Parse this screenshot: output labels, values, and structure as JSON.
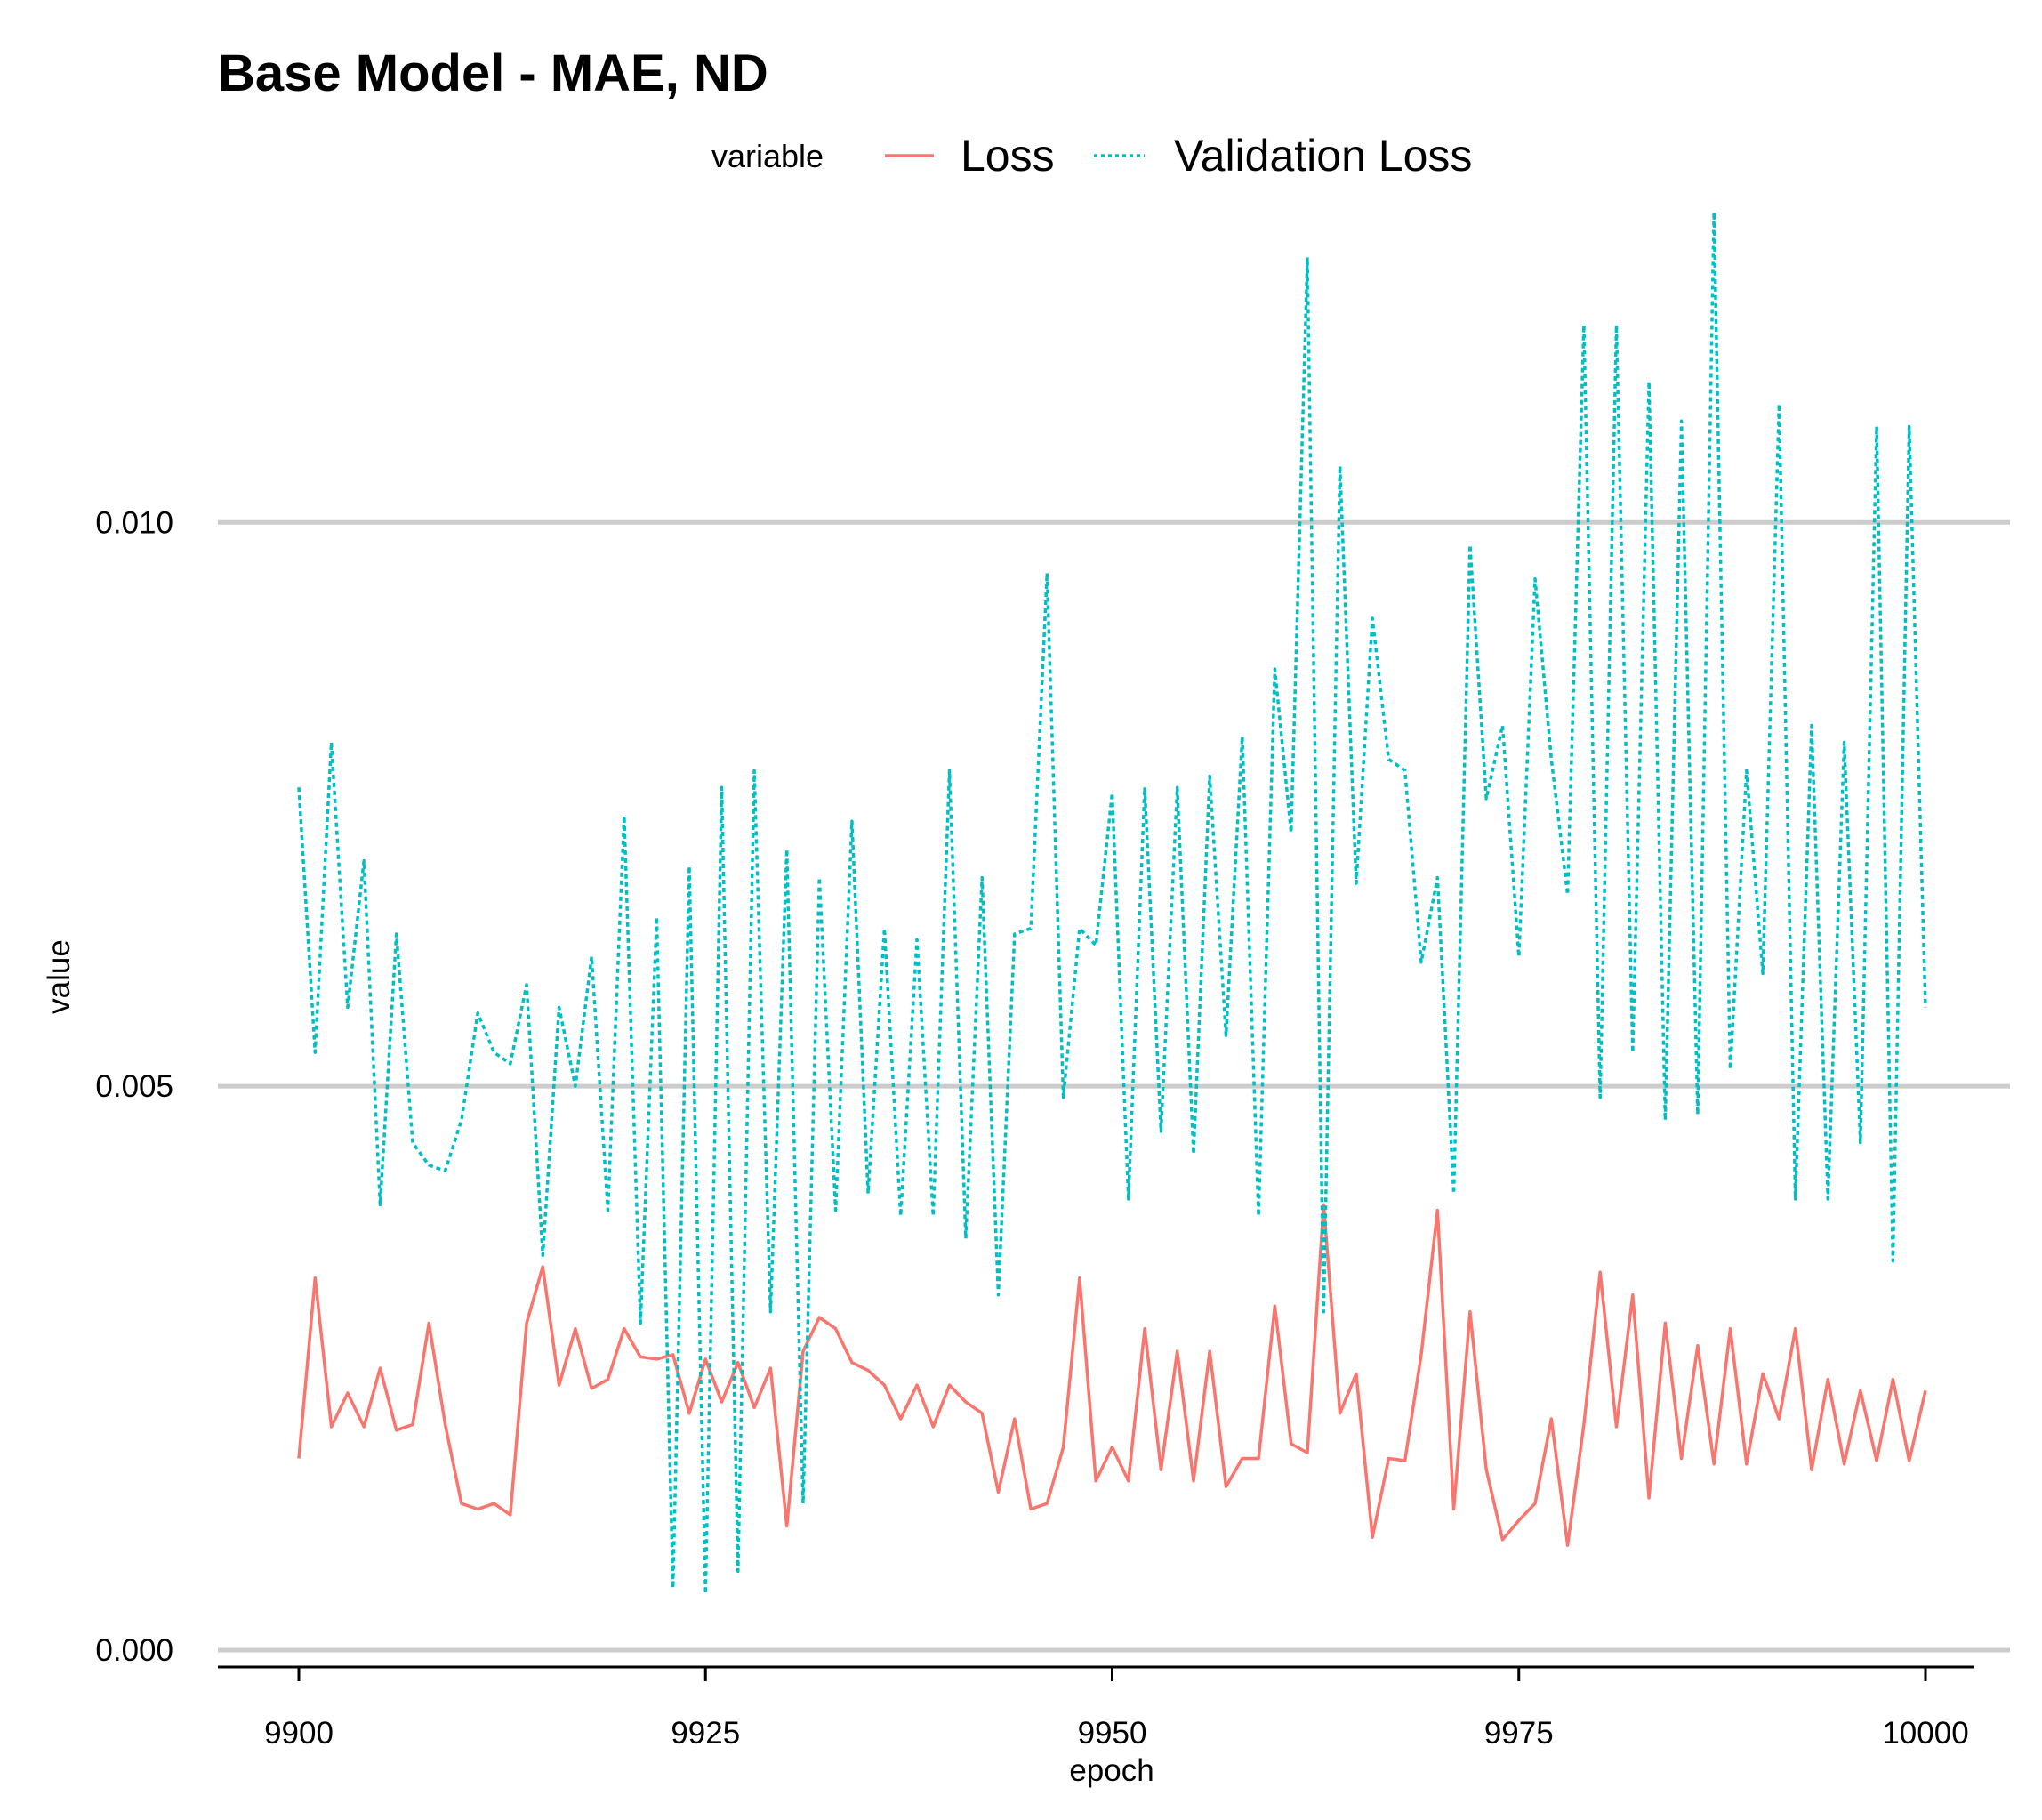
{
  "chart_data": {
    "type": "line",
    "title": "Base Model - MAE, ND",
    "xlabel": "epoch",
    "ylabel": "value",
    "xlim": [
      9900,
      10000
    ],
    "ylim": [
      0,
      0.0127
    ],
    "xticks": [
      9900,
      9925,
      9950,
      9975,
      10000
    ],
    "xtick_labels": [
      "9900",
      "9925",
      "9950",
      "9975",
      "10000"
    ],
    "yticks": [
      0,
      0.005,
      0.01
    ],
    "ytick_labels": [
      "0.000",
      "0.005",
      "0.010"
    ],
    "grid": "horizontal-major",
    "legend": {
      "title": "variable",
      "position": "top"
    },
    "x": [
      9900,
      9901,
      9902,
      9903,
      9904,
      9905,
      9906,
      9907,
      9908,
      9909,
      9910,
      9911,
      9912,
      9913,
      9914,
      9915,
      9916,
      9917,
      9918,
      9919,
      9920,
      9921,
      9922,
      9923,
      9924,
      9925,
      9926,
      9927,
      9928,
      9929,
      9930,
      9931,
      9932,
      9933,
      9934,
      9935,
      9936,
      9937,
      9938,
      9939,
      9940,
      9941,
      9942,
      9943,
      9944,
      9945,
      9946,
      9947,
      9948,
      9949,
      9950,
      9951,
      9952,
      9953,
      9954,
      9955,
      9956,
      9957,
      9958,
      9959,
      9960,
      9961,
      9962,
      9963,
      9964,
      9965,
      9966,
      9967,
      9968,
      9969,
      9970,
      9971,
      9972,
      9973,
      9974,
      9975,
      9976,
      9977,
      9978,
      9979,
      9980,
      9981,
      9982,
      9983,
      9984,
      9985,
      9986,
      9987,
      9988,
      9989,
      9990,
      9991,
      9992,
      9993,
      9994,
      9995,
      9996,
      9997,
      9998,
      9999,
      10000
    ],
    "series": [
      {
        "name": "Loss",
        "color": "#F8766D",
        "dash": "solid",
        "values": [
          0.0017,
          0.0033,
          0.00198,
          0.00228,
          0.00198,
          0.0025,
          0.00195,
          0.002,
          0.0029,
          0.002,
          0.0013,
          0.00125,
          0.0013,
          0.0012,
          0.0029,
          0.0034,
          0.00235,
          0.00285,
          0.00232,
          0.0024,
          0.00285,
          0.0026,
          0.00258,
          0.00262,
          0.0021,
          0.00258,
          0.0022,
          0.00255,
          0.00215,
          0.0025,
          0.0011,
          0.00265,
          0.00295,
          0.00285,
          0.00255,
          0.00248,
          0.00235,
          0.00205,
          0.00235,
          0.00198,
          0.00235,
          0.0022,
          0.0021,
          0.0014,
          0.00205,
          0.00125,
          0.0013,
          0.0018,
          0.0033,
          0.0015,
          0.0018,
          0.0015,
          0.00285,
          0.0016,
          0.00265,
          0.0015,
          0.00265,
          0.00145,
          0.0017,
          0.0017,
          0.00305,
          0.00183,
          0.00175,
          0.00395,
          0.0021,
          0.00245,
          0.001,
          0.0017,
          0.00168,
          0.00262,
          0.0039,
          0.00125,
          0.003,
          0.0016,
          0.00098,
          0.00115,
          0.0013,
          0.00205,
          0.00093,
          0.002,
          0.00335,
          0.00198,
          0.00315,
          0.00135,
          0.0029,
          0.0017,
          0.0027,
          0.00165,
          0.00285,
          0.00165,
          0.00245,
          0.00205,
          0.00285,
          0.0016,
          0.0024,
          0.00165,
          0.0023,
          0.00168,
          0.0024,
          0.00168,
          0.0023
        ]
      },
      {
        "name": "Validation Loss",
        "color": "#00BFC4",
        "dash": "dotted",
        "values": [
          0.00765,
          0.0053,
          0.00805,
          0.0057,
          0.007,
          0.00395,
          0.00635,
          0.0045,
          0.0043,
          0.00425,
          0.0047,
          0.00565,
          0.0053,
          0.0052,
          0.0059,
          0.0035,
          0.0057,
          0.005,
          0.00615,
          0.0039,
          0.0074,
          0.0029,
          0.0065,
          0.00055,
          0.00695,
          0.0005,
          0.00765,
          0.0007,
          0.0078,
          0.003,
          0.0071,
          0.0013,
          0.00685,
          0.0039,
          0.00735,
          0.00405,
          0.0064,
          0.00385,
          0.0063,
          0.00385,
          0.0078,
          0.00365,
          0.00685,
          0.00315,
          0.00635,
          0.0064,
          0.00955,
          0.0049,
          0.0064,
          0.00625,
          0.0076,
          0.004,
          0.00765,
          0.0046,
          0.00765,
          0.0044,
          0.00775,
          0.00545,
          0.0081,
          0.00385,
          0.0087,
          0.00725,
          0.01235,
          0.003,
          0.0105,
          0.0068,
          0.00915,
          0.0079,
          0.0078,
          0.0061,
          0.00685,
          0.00405,
          0.0098,
          0.00755,
          0.0082,
          0.00615,
          0.0095,
          0.0079,
          0.0067,
          0.01175,
          0.0049,
          0.01175,
          0.0053,
          0.01125,
          0.0047,
          0.0109,
          0.00475,
          0.01275,
          0.00515,
          0.0078,
          0.006,
          0.01105,
          0.004,
          0.0082,
          0.004,
          0.00805,
          0.0045,
          0.01085,
          0.00345,
          0.01085,
          0.0057
        ]
      }
    ]
  }
}
